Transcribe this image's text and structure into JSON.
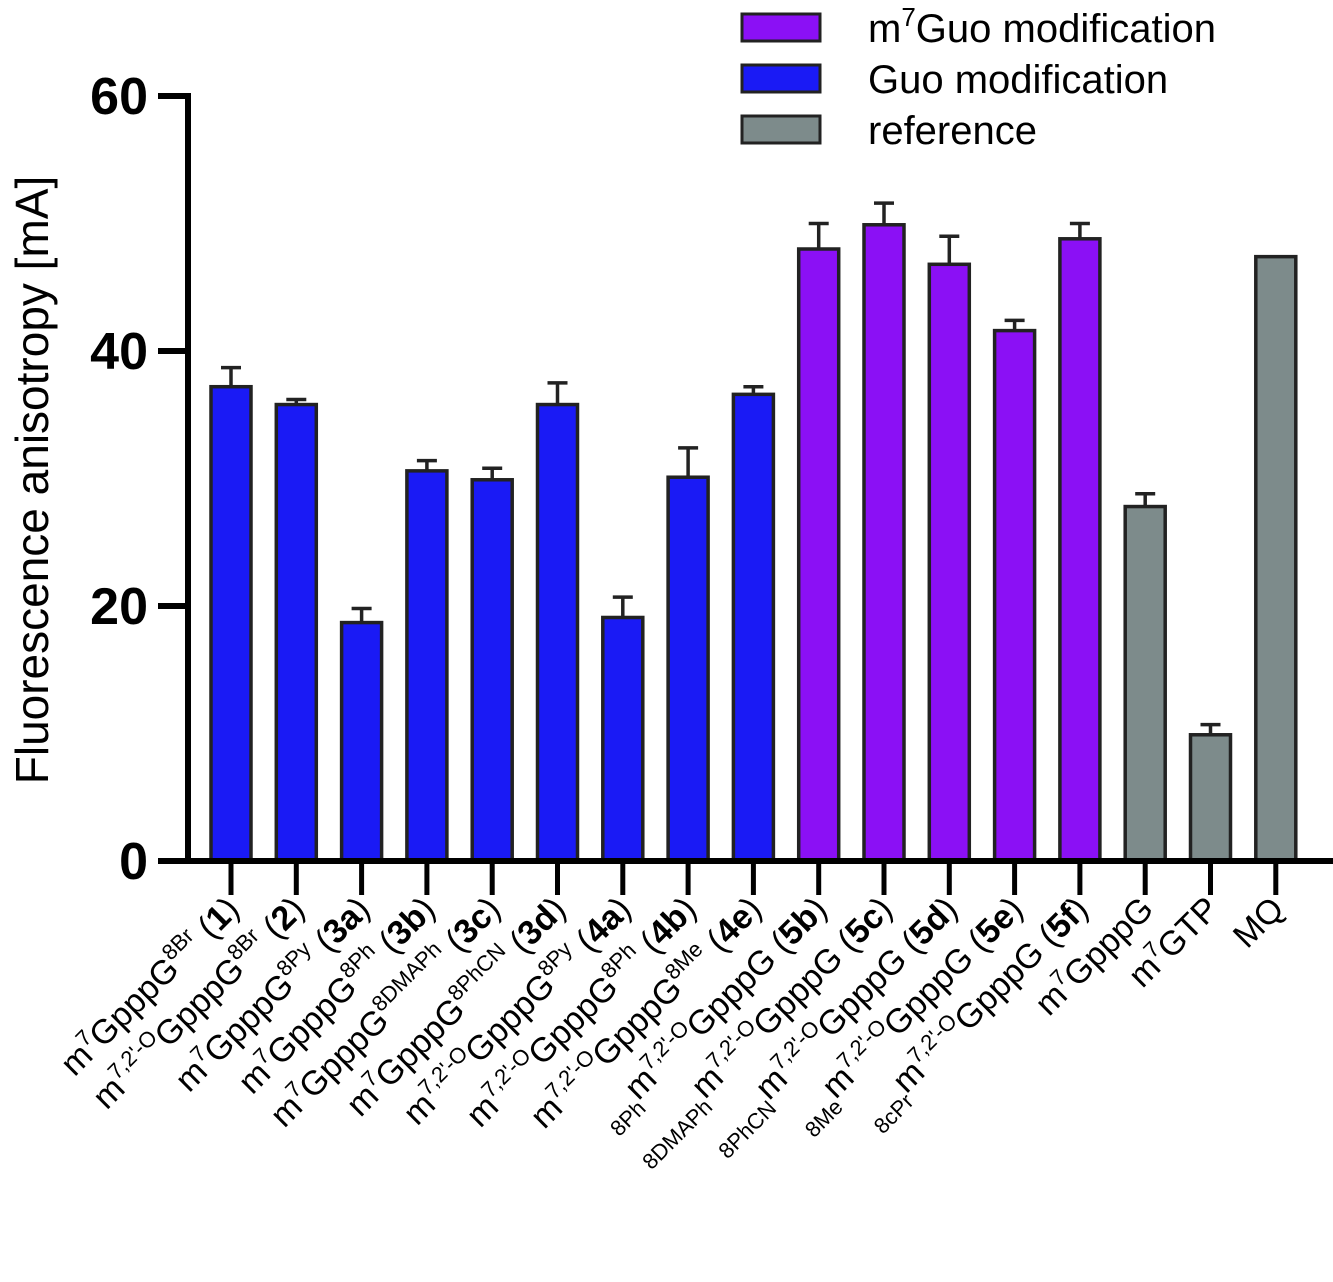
{
  "chart_data": {
    "type": "bar",
    "title": "",
    "xlabel": "",
    "ylabel": "Fluorescence anisotropy [mA]",
    "ylim": [
      0,
      60
    ],
    "yticks": [
      0,
      20,
      40,
      60
    ],
    "colors": {
      "m7Guo modification": "#8B10F5",
      "Guo modification": "#1A1AF5",
      "reference": "#7D8B8B"
    },
    "legend": [
      {
        "key": "m7Guo modification",
        "text": "m",
        "sup": "7",
        "rest": "Guo modification"
      },
      {
        "key": "Guo modification",
        "text": "Guo modification",
        "sup": "",
        "rest": ""
      },
      {
        "key": "reference",
        "text": "reference",
        "sup": "",
        "rest": ""
      }
    ],
    "legend_position": "top-right",
    "bars": [
      {
        "group": "Guo modification",
        "value": 37.2,
        "error": 1.5,
        "label": [
          {
            "t": "m"
          },
          {
            "t": "7",
            "s": "sup"
          },
          {
            "t": "GpppG"
          },
          {
            "t": "8Br",
            "s": "sup"
          },
          {
            "t": " ("
          },
          {
            "t": "1",
            "s": "num"
          },
          {
            "t": ")"
          }
        ]
      },
      {
        "group": "Guo modification",
        "value": 35.8,
        "error": 0.4,
        "label": [
          {
            "t": "m"
          },
          {
            "t": "7,2'-O",
            "s": "sup"
          },
          {
            "t": "GpppG"
          },
          {
            "t": "8Br",
            "s": "sup"
          },
          {
            "t": " ("
          },
          {
            "t": "2",
            "s": "num"
          },
          {
            "t": ")"
          }
        ]
      },
      {
        "group": "Guo modification",
        "value": 18.7,
        "error": 1.1,
        "label": [
          {
            "t": "m"
          },
          {
            "t": "7",
            "s": "sup"
          },
          {
            "t": "GpppG"
          },
          {
            "t": "8Py",
            "s": "sup"
          },
          {
            "t": " ("
          },
          {
            "t": "3a",
            "s": "num"
          },
          {
            "t": ")"
          }
        ]
      },
      {
        "group": "Guo modification",
        "value": 30.6,
        "error": 0.8,
        "label": [
          {
            "t": "m"
          },
          {
            "t": "7",
            "s": "sup"
          },
          {
            "t": "GpppG"
          },
          {
            "t": "8Ph",
            "s": "sup"
          },
          {
            "t": " ("
          },
          {
            "t": "3b",
            "s": "num"
          },
          {
            "t": ")"
          }
        ]
      },
      {
        "group": "Guo modification",
        "value": 29.9,
        "error": 0.9,
        "label": [
          {
            "t": "m"
          },
          {
            "t": "7",
            "s": "sup"
          },
          {
            "t": "GpppG"
          },
          {
            "t": "8DMAPh",
            "s": "sup"
          },
          {
            "t": " ("
          },
          {
            "t": "3c",
            "s": "num"
          },
          {
            "t": ")"
          }
        ]
      },
      {
        "group": "Guo modification",
        "value": 35.8,
        "error": 1.7,
        "label": [
          {
            "t": "m"
          },
          {
            "t": "7",
            "s": "sup"
          },
          {
            "t": "GpppG"
          },
          {
            "t": "8PhCN",
            "s": "sup"
          },
          {
            "t": " ("
          },
          {
            "t": "3d",
            "s": "num"
          },
          {
            "t": ")"
          }
        ]
      },
      {
        "group": "Guo modification",
        "value": 19.1,
        "error": 1.6,
        "label": [
          {
            "t": "m"
          },
          {
            "t": "7,2'-O",
            "s": "sup"
          },
          {
            "t": "GpppG"
          },
          {
            "t": "8Py",
            "s": "sup"
          },
          {
            "t": " ("
          },
          {
            "t": "4a",
            "s": "num"
          },
          {
            "t": ")"
          }
        ]
      },
      {
        "group": "Guo modification",
        "value": 30.1,
        "error": 2.3,
        "label": [
          {
            "t": "m"
          },
          {
            "t": "7,2'-O",
            "s": "sup"
          },
          {
            "t": "GpppG"
          },
          {
            "t": "8Ph",
            "s": "sup"
          },
          {
            "t": " ("
          },
          {
            "t": "4b",
            "s": "num"
          },
          {
            "t": ")"
          }
        ]
      },
      {
        "group": "Guo modification",
        "value": 36.6,
        "error": 0.6,
        "label": [
          {
            "t": "m"
          },
          {
            "t": "7,2'-O",
            "s": "sup"
          },
          {
            "t": "GpppG"
          },
          {
            "t": "8Me",
            "s": "sup"
          },
          {
            "t": " ("
          },
          {
            "t": "4e",
            "s": "num"
          },
          {
            "t": ")"
          }
        ]
      },
      {
        "group": "m7Guo modification",
        "value": 48.0,
        "error": 2.0,
        "label": [
          {
            "t": "8Ph",
            "s": "sub"
          },
          {
            "t": "m"
          },
          {
            "t": "7,2'-O",
            "s": "sup"
          },
          {
            "t": "GpppG ("
          },
          {
            "t": "5b",
            "s": "num"
          },
          {
            "t": ")"
          }
        ]
      },
      {
        "group": "m7Guo modification",
        "value": 49.9,
        "error": 1.7,
        "label": [
          {
            "t": "8DMAPh",
            "s": "sub"
          },
          {
            "t": "m"
          },
          {
            "t": "7,2'-O",
            "s": "sup"
          },
          {
            "t": "GpppG ("
          },
          {
            "t": "5c",
            "s": "num"
          },
          {
            "t": ")"
          }
        ]
      },
      {
        "group": "m7Guo modification",
        "value": 46.8,
        "error": 2.2,
        "label": [
          {
            "t": "8PhCN",
            "s": "sub"
          },
          {
            "t": "m"
          },
          {
            "t": "7,2'-O",
            "s": "sup"
          },
          {
            "t": "GpppG ("
          },
          {
            "t": "5d",
            "s": "num"
          },
          {
            "t": ")"
          }
        ]
      },
      {
        "group": "m7Guo modification",
        "value": 41.6,
        "error": 0.8,
        "label": [
          {
            "t": "8Me",
            "s": "sub"
          },
          {
            "t": "m"
          },
          {
            "t": "7,2'-O",
            "s": "sup"
          },
          {
            "t": "GpppG ("
          },
          {
            "t": "5e",
            "s": "num"
          },
          {
            "t": ")"
          }
        ]
      },
      {
        "group": "m7Guo modification",
        "value": 48.8,
        "error": 1.2,
        "label": [
          {
            "t": "8cPr",
            "s": "sub"
          },
          {
            "t": "m"
          },
          {
            "t": "7,2'-O",
            "s": "sup"
          },
          {
            "t": "GpppG ("
          },
          {
            "t": "5f",
            "s": "num"
          },
          {
            "t": ")"
          }
        ]
      },
      {
        "group": "reference",
        "value": 27.8,
        "error": 1.0,
        "label": [
          {
            "t": "m"
          },
          {
            "t": "7",
            "s": "sup"
          },
          {
            "t": "GpppG"
          }
        ]
      },
      {
        "group": "reference",
        "value": 9.9,
        "error": 0.8,
        "label": [
          {
            "t": "m"
          },
          {
            "t": "7",
            "s": "sup"
          },
          {
            "t": "GTP"
          }
        ]
      },
      {
        "group": "reference",
        "value": 47.4,
        "error": 0,
        "label": [
          {
            "t": "MQ"
          }
        ]
      }
    ]
  }
}
